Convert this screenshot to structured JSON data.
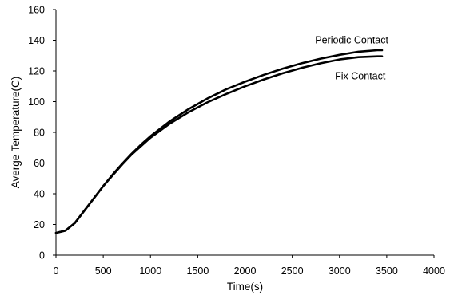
{
  "chart_data": {
    "type": "line",
    "title": "",
    "xlabel": "Time(s)",
    "ylabel": "Averge Temperature(C)",
    "xlim": [
      0,
      4000
    ],
    "ylim": [
      0,
      160
    ],
    "xticks": [
      0,
      500,
      1000,
      1500,
      2000,
      2500,
      3000,
      3500,
      4000
    ],
    "yticks": [
      0,
      20,
      40,
      60,
      80,
      100,
      120,
      140,
      160
    ],
    "grid": false,
    "legend": "none",
    "series": [
      {
        "name": "Periodic Contact",
        "x": [
          0,
          100,
          200,
          300,
          400,
          500,
          600,
          700,
          800,
          900,
          1000,
          1200,
          1400,
          1600,
          1800,
          2000,
          2200,
          2400,
          2600,
          2800,
          3000,
          3200,
          3400,
          3450
        ],
        "y": [
          14.5,
          16,
          21,
          29,
          37,
          45,
          52.5,
          59.5,
          66,
          72,
          77.5,
          87,
          95,
          102,
          108,
          113,
          117.5,
          121.5,
          125,
          128,
          130.5,
          132.5,
          133.5,
          133.5
        ]
      },
      {
        "name": "Fix Contact",
        "x": [
          0,
          100,
          200,
          300,
          400,
          500,
          600,
          700,
          800,
          900,
          1000,
          1200,
          1400,
          1600,
          1800,
          2000,
          2200,
          2400,
          2600,
          2800,
          3000,
          3200,
          3400,
          3450
        ],
        "y": [
          14.5,
          16,
          21,
          29,
          37,
          45,
          52,
          59,
          65.5,
          71,
          76.5,
          85.5,
          93,
          99.5,
          105,
          110,
          114.5,
          118.5,
          122,
          125,
          127.5,
          129,
          129.5,
          129.5
        ]
      }
    ]
  }
}
